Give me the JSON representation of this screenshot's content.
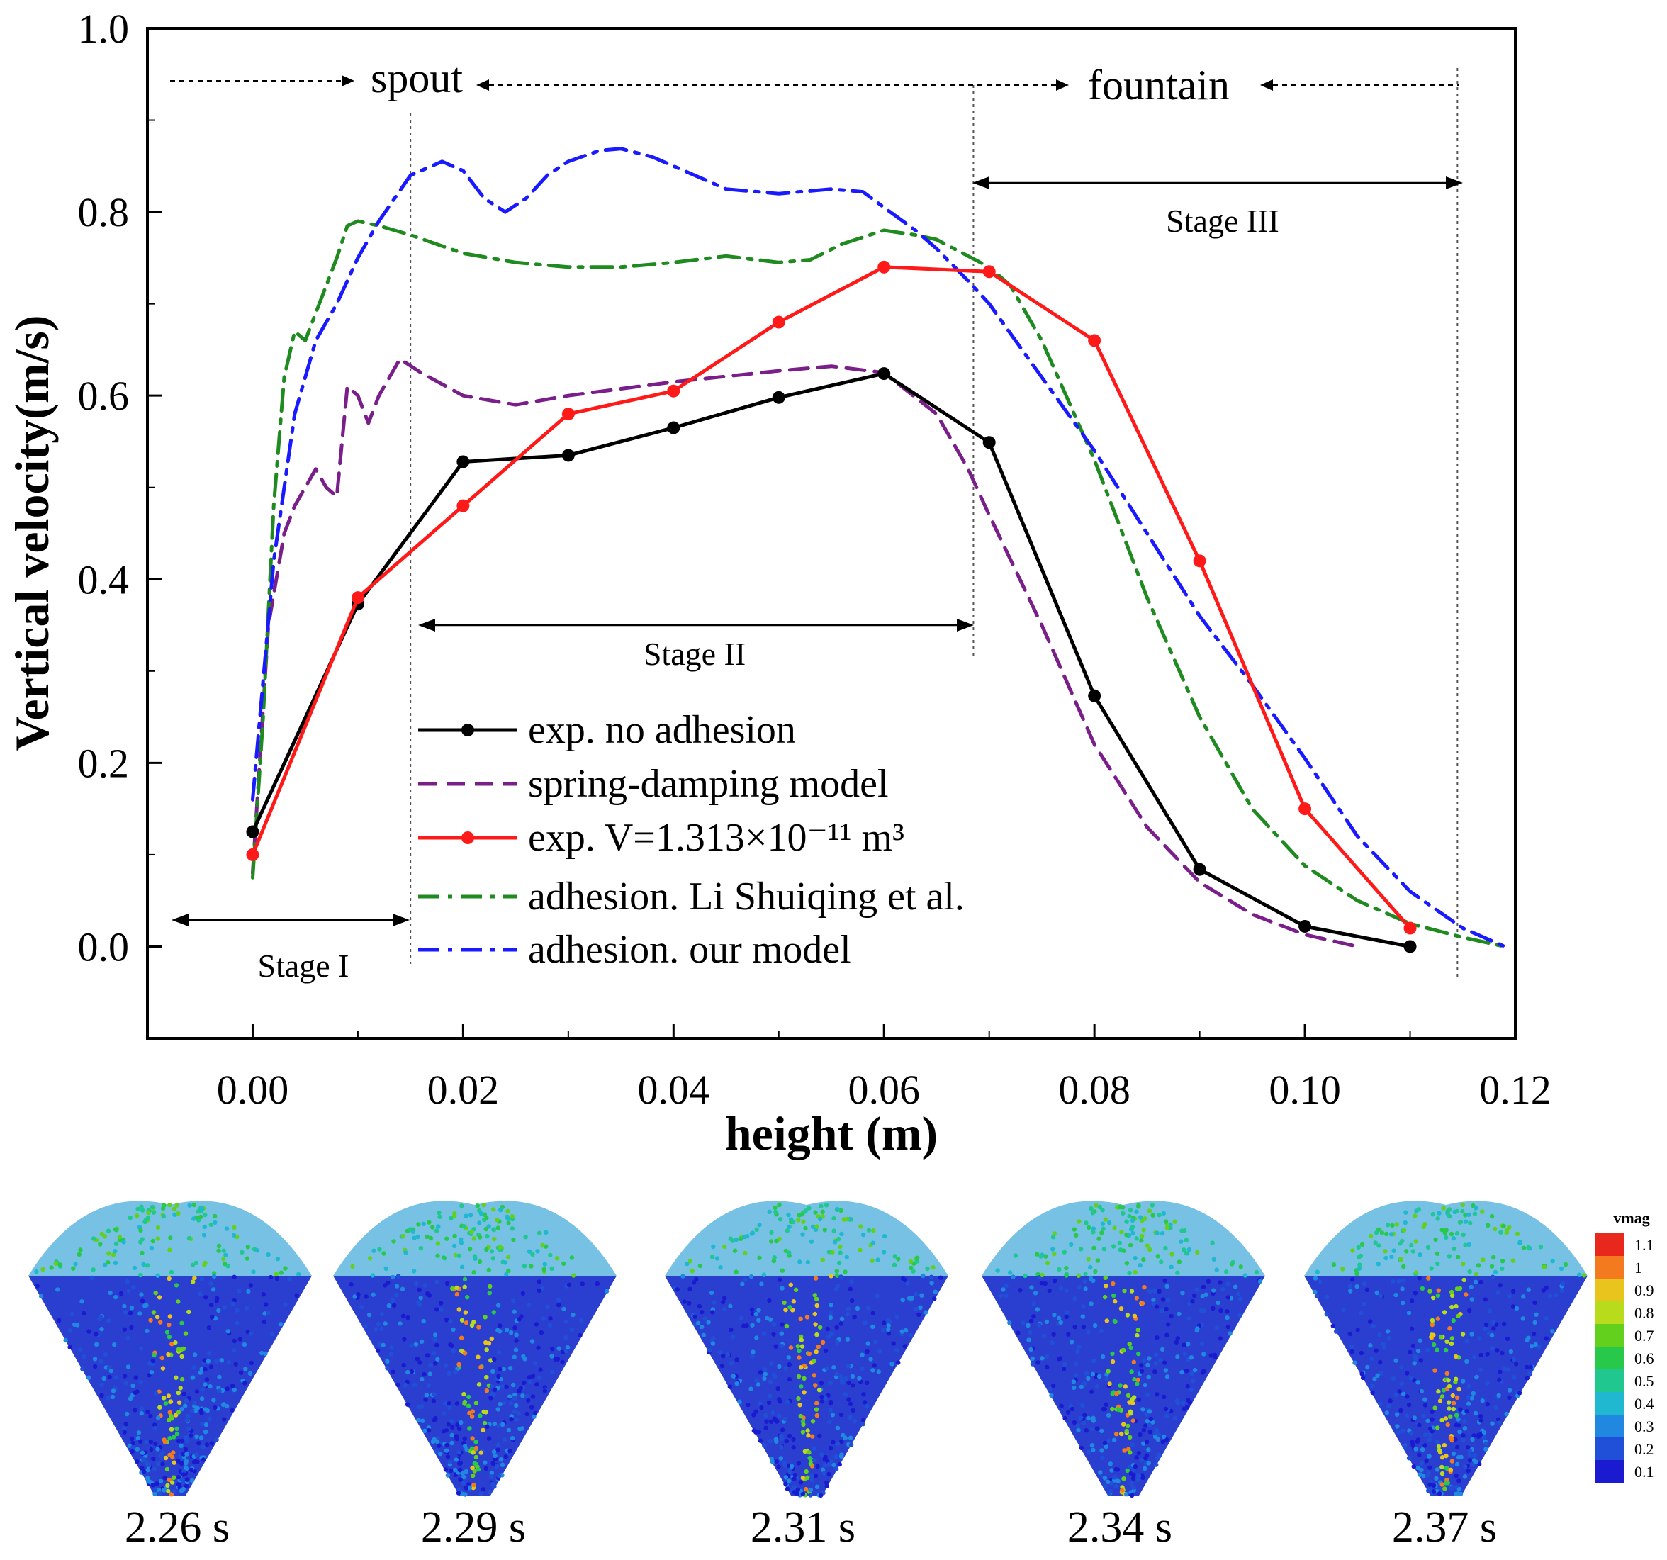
{
  "chart_data": {
    "type": "line",
    "xlabel": "height (m)",
    "ylabel": "Vertical velocity(m/s)",
    "xlim": [
      -0.01,
      0.12
    ],
    "ylim": [
      -0.1,
      1.0
    ],
    "xticks": [
      "0.00",
      "0.02",
      "0.04",
      "0.06",
      "0.08",
      "0.10",
      "0.12"
    ],
    "yticks": [
      "0.0",
      "0.2",
      "0.4",
      "0.6",
      "0.8",
      "1.0"
    ],
    "grid": false,
    "legend_position": "lower-center",
    "series": [
      {
        "name": "exp. no adhesion",
        "color": "#000000",
        "style": "solid-markers",
        "x": [
          0.0,
          0.01,
          0.02,
          0.03,
          0.04,
          0.05,
          0.06,
          0.07,
          0.08,
          0.09,
          0.1,
          0.11
        ],
        "y": [
          0.125,
          0.373,
          0.528,
          0.535,
          0.565,
          0.598,
          0.624,
          0.549,
          0.273,
          0.084,
          0.022,
          0.0
        ]
      },
      {
        "name": "spring-damping model",
        "color": "#7a1f8a",
        "style": "dashed",
        "x": [
          0.0,
          0.0015,
          0.003,
          0.004,
          0.005,
          0.006,
          0.007,
          0.008,
          0.009,
          0.01,
          0.011,
          0.012,
          0.014,
          0.016,
          0.02,
          0.025,
          0.03,
          0.04,
          0.05,
          0.055,
          0.06,
          0.065,
          0.068,
          0.07,
          0.075,
          0.08,
          0.085,
          0.09,
          0.095,
          0.1,
          0.105
        ],
        "y": [
          0.08,
          0.35,
          0.45,
          0.48,
          0.5,
          0.52,
          0.5,
          0.49,
          0.61,
          0.6,
          0.57,
          0.6,
          0.64,
          0.625,
          0.6,
          0.59,
          0.6,
          0.615,
          0.627,
          0.632,
          0.625,
          0.58,
          0.52,
          0.47,
          0.35,
          0.22,
          0.13,
          0.07,
          0.035,
          0.013,
          0.0
        ]
      },
      {
        "name": "exp. V=1.313×10⁻¹¹ m³",
        "color": "#ff1a1a",
        "style": "solid-markers",
        "x": [
          0.0,
          0.01,
          0.02,
          0.03,
          0.04,
          0.05,
          0.06,
          0.07,
          0.08,
          0.09,
          0.1,
          0.11
        ],
        "y": [
          0.1,
          0.38,
          0.48,
          0.58,
          0.605,
          0.68,
          0.74,
          0.735,
          0.66,
          0.42,
          0.15,
          0.02
        ]
      },
      {
        "name": "adhesion. Li Shuiqing et al.",
        "color": "#1f8a1f",
        "style": "dash-dot",
        "x": [
          0.0,
          0.001,
          0.002,
          0.003,
          0.004,
          0.005,
          0.006,
          0.007,
          0.008,
          0.009,
          0.01,
          0.012,
          0.015,
          0.02,
          0.025,
          0.03,
          0.035,
          0.04,
          0.045,
          0.05,
          0.053,
          0.056,
          0.06,
          0.063,
          0.065,
          0.068,
          0.07,
          0.072,
          0.075,
          0.08,
          0.085,
          0.09,
          0.095,
          0.1,
          0.105,
          0.11,
          0.115,
          0.119
        ],
        "y": [
          0.075,
          0.25,
          0.48,
          0.62,
          0.67,
          0.66,
          0.69,
          0.72,
          0.75,
          0.785,
          0.79,
          0.785,
          0.775,
          0.755,
          0.745,
          0.74,
          0.74,
          0.745,
          0.752,
          0.745,
          0.748,
          0.765,
          0.78,
          0.775,
          0.77,
          0.752,
          0.74,
          0.72,
          0.66,
          0.53,
          0.38,
          0.25,
          0.15,
          0.088,
          0.05,
          0.025,
          0.01,
          0.0
        ]
      },
      {
        "name": "adhesion. our model",
        "color": "#1a1aff",
        "style": "dash-dot",
        "x": [
          0.0,
          0.002,
          0.004,
          0.006,
          0.008,
          0.01,
          0.012,
          0.015,
          0.018,
          0.02,
          0.022,
          0.024,
          0.026,
          0.028,
          0.03,
          0.033,
          0.035,
          0.038,
          0.04,
          0.045,
          0.05,
          0.055,
          0.058,
          0.06,
          0.063,
          0.065,
          0.068,
          0.07,
          0.075,
          0.08,
          0.085,
          0.09,
          0.095,
          0.1,
          0.105,
          0.11,
          0.115,
          0.119
        ],
        "y": [
          0.16,
          0.42,
          0.58,
          0.66,
          0.7,
          0.75,
          0.79,
          0.84,
          0.855,
          0.845,
          0.815,
          0.8,
          0.815,
          0.84,
          0.855,
          0.867,
          0.869,
          0.86,
          0.85,
          0.825,
          0.82,
          0.825,
          0.822,
          0.805,
          0.78,
          0.76,
          0.725,
          0.7,
          0.62,
          0.54,
          0.45,
          0.36,
          0.285,
          0.205,
          0.12,
          0.06,
          0.02,
          0.0
        ]
      }
    ],
    "annotations": {
      "spout": "spout",
      "fountain": "fountain",
      "stage1": "Stage I",
      "stage2": "Stage II",
      "stage3": "Stage III"
    },
    "vlines_x": [
      0.015,
      0.0685,
      0.1145
    ]
  },
  "snapshots": {
    "times": [
      "2.26 s",
      "2.29 s",
      "2.31 s",
      "2.34 s",
      "2.37 s"
    ],
    "colorbar": {
      "title": "vmag",
      "ticks": [
        "1.1",
        "1",
        "0.9",
        "0.8",
        "0.7",
        "0.6",
        "0.5",
        "0.4",
        "0.3",
        "0.2",
        "0.1"
      ],
      "colors": [
        "#e8281c",
        "#f47a20",
        "#e8c41c",
        "#b8dc1c",
        "#62d01c",
        "#28c84a",
        "#20c890",
        "#20b8d0",
        "#2088e0",
        "#2050d8",
        "#1a1ad0"
      ]
    }
  }
}
